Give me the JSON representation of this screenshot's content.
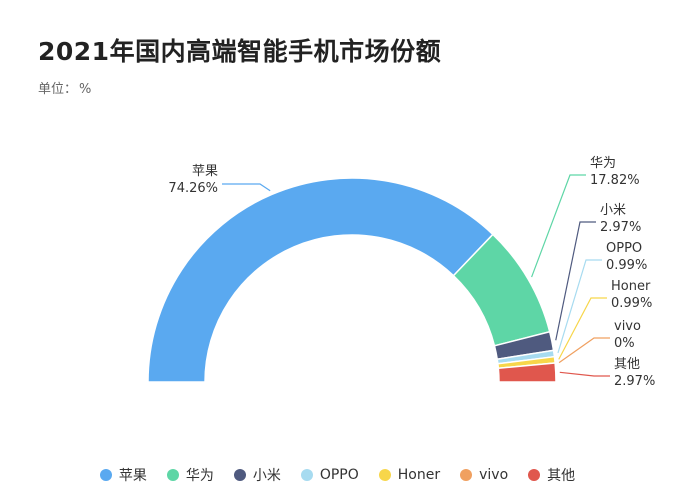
{
  "title": "2021年国内高端智能手机市场份额",
  "unit_label": "单位：",
  "unit_value": "%",
  "chart_data": {
    "type": "pie",
    "subtype": "half-donut",
    "title": "2021年国内高端智能手机市场份额",
    "unit": "%",
    "categories": [
      "苹果",
      "华为",
      "小米",
      "OPPO",
      "Honer",
      "vivo",
      "其他"
    ],
    "values": [
      74.26,
      17.82,
      2.97,
      0.99,
      0.99,
      0,
      2.97
    ],
    "value_labels": [
      "74.26%",
      "17.82%",
      "2.97%",
      "0.99%",
      "0.99%",
      "0%",
      "2.97%"
    ],
    "colors": [
      "#5aa9f0",
      "#5ed6a6",
      "#4f5a7f",
      "#a7dbf0",
      "#f7d64a",
      "#f0a060",
      "#e0574d"
    ],
    "legend_position": "bottom"
  }
}
